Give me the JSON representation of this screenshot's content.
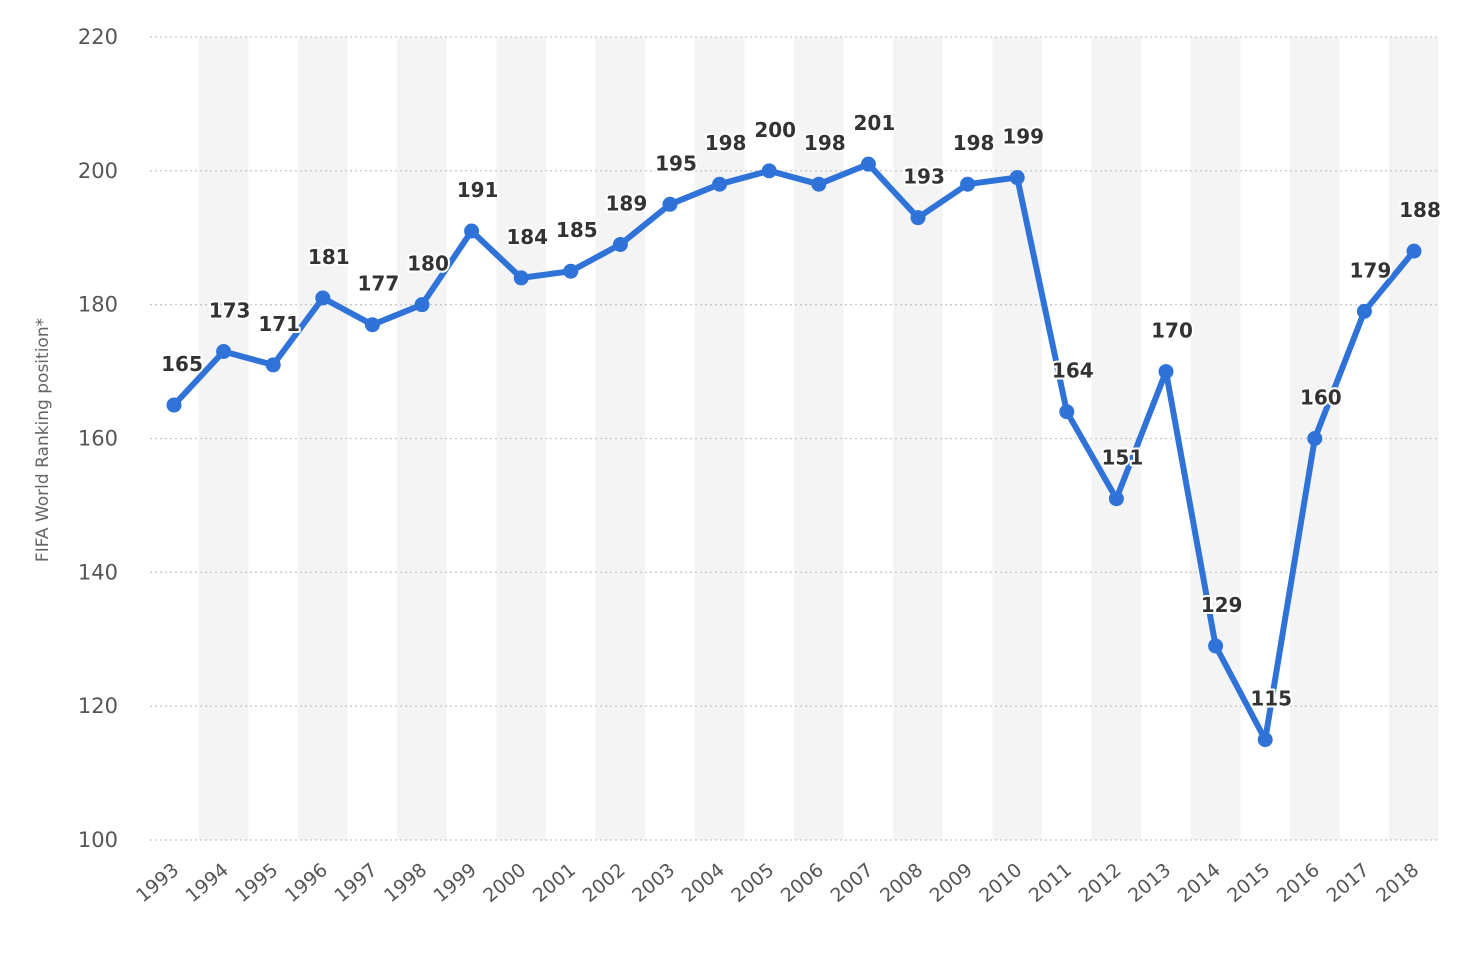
{
  "chart_data": {
    "type": "line",
    "title": "",
    "xlabel": "",
    "ylabel": "FIFA World Ranking position*",
    "ylim": [
      100,
      220
    ],
    "yticks": [
      100,
      120,
      140,
      160,
      180,
      200,
      220
    ],
    "grid": true,
    "categories": [
      "1993",
      "1994",
      "1995",
      "1996",
      "1997",
      "1998",
      "1999",
      "2000",
      "2001",
      "2002",
      "2003",
      "2004",
      "2005",
      "2006",
      "2007",
      "2008",
      "2009",
      "2010",
      "2011",
      "2012",
      "2013",
      "2014",
      "2015",
      "2016",
      "2017",
      "2018"
    ],
    "series": [
      {
        "values": [
          165,
          173,
          171,
          181,
          177,
          180,
          191,
          184,
          185,
          189,
          195,
          198,
          200,
          198,
          201,
          193,
          198,
          199,
          164,
          151,
          170,
          129,
          115,
          160,
          179,
          188
        ],
        "color": "#2f73d8"
      }
    ],
    "band_color": "#f4f4f4",
    "grid_color": "#c8c8c8"
  }
}
